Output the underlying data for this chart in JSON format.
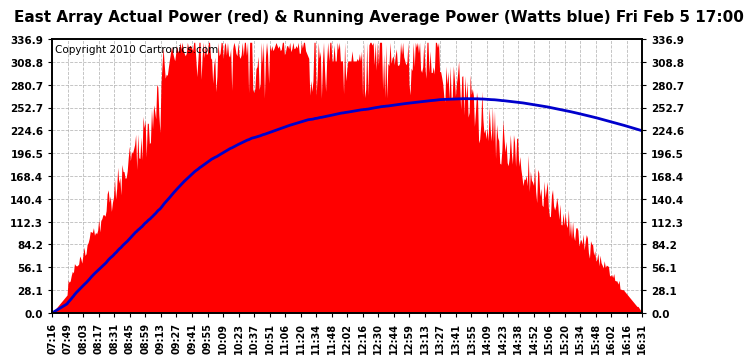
{
  "title": "East Array Actual Power (red) & Running Average Power (Watts blue) Fri Feb 5 17:00",
  "copyright": "Copyright 2010 Cartronics.com",
  "ylim": [
    0.0,
    336.9
  ],
  "yticks": [
    0.0,
    28.1,
    56.1,
    84.2,
    112.3,
    140.4,
    168.4,
    196.5,
    224.6,
    252.7,
    280.7,
    308.8,
    336.9
  ],
  "xtick_labels": [
    "07:16",
    "07:49",
    "08:03",
    "08:17",
    "08:31",
    "08:45",
    "08:59",
    "09:13",
    "09:27",
    "09:41",
    "09:55",
    "10:09",
    "10:23",
    "10:37",
    "10:51",
    "11:06",
    "11:20",
    "11:34",
    "11:48",
    "12:02",
    "12:16",
    "12:30",
    "12:44",
    "12:59",
    "13:13",
    "13:27",
    "13:41",
    "13:55",
    "14:09",
    "14:23",
    "14:38",
    "14:52",
    "15:06",
    "15:20",
    "15:34",
    "15:48",
    "16:02",
    "16:16",
    "16:31"
  ],
  "background_color": "#ffffff",
  "plot_bg_color": "#ffffff",
  "grid_color": "#aaaaaa",
  "actual_color": "#ff0000",
  "avg_color": "#0000cc",
  "title_fontsize": 11,
  "copyright_fontsize": 7.5
}
